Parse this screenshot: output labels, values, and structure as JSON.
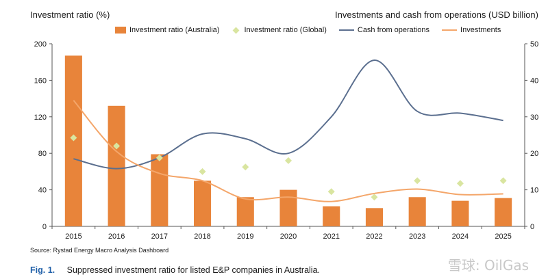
{
  "left_axis_title": "Investment ratio (%)",
  "right_axis_title": "Investments and cash from operations (USD billion)",
  "legend": [
    {
      "label": "Investment ratio (Australia)",
      "kind": "bar",
      "color": "#E8843A"
    },
    {
      "label": "Investment ratio (Global)",
      "kind": "diamond",
      "color": "#D9E5A0"
    },
    {
      "label": "Cash from operations",
      "kind": "line",
      "color": "#5B6F8F"
    },
    {
      "label": "Investments",
      "kind": "line",
      "color": "#F4A66A"
    }
  ],
  "source": "Source: Rystad Energy Macro Analysis Dashboard",
  "caption_label": "Fig. 1.",
  "caption_text": "Suppressed investment ratio for listed E&P companies in Australia.",
  "watermark": "雪球: OilGas",
  "chart_data": {
    "type": "bar",
    "categories": [
      "2015",
      "2016",
      "2017",
      "2018",
      "2019",
      "2020",
      "2021",
      "2022",
      "2023",
      "2024",
      "2025"
    ],
    "left_axis": {
      "ylim": [
        0,
        200
      ],
      "ticks": [
        0,
        40,
        80,
        120,
        160,
        200
      ]
    },
    "right_axis": {
      "ylim": [
        0,
        50
      ],
      "ticks": [
        0,
        10,
        20,
        30,
        40,
        50
      ]
    },
    "series": [
      {
        "name": "Investment ratio (Australia)",
        "type": "bar",
        "axis": "left",
        "color": "#E8843A",
        "values": [
          187,
          132,
          79,
          50,
          32,
          40,
          22,
          20,
          32,
          28,
          31
        ]
      },
      {
        "name": "Investment ratio (Global)",
        "type": "scatter",
        "axis": "left",
        "color": "#D9E5A0",
        "values": [
          97,
          88,
          75,
          60,
          65,
          72,
          38,
          32,
          50,
          47,
          50
        ]
      },
      {
        "name": "Cash from operations",
        "type": "line",
        "axis": "right",
        "color": "#5B6F8F",
        "values": [
          18.5,
          15.8,
          18.8,
          25.3,
          24,
          20,
          30,
          45.5,
          31.5,
          31,
          29
        ]
      },
      {
        "name": "Investments",
        "type": "line",
        "axis": "right",
        "color": "#F4A66A",
        "values": [
          34.5,
          20.5,
          14.5,
          12.5,
          7.5,
          8,
          6.8,
          9,
          10.2,
          8.7,
          8.9
        ]
      }
    ]
  }
}
